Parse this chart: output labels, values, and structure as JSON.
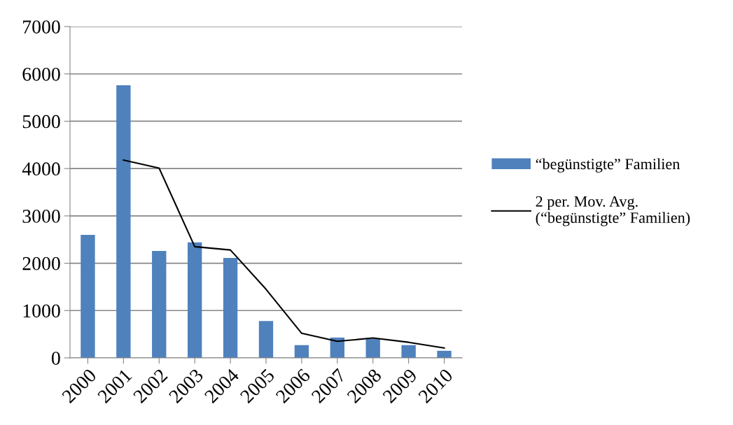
{
  "chart_data": {
    "type": "bar",
    "categories": [
      "2000",
      "2001",
      "2002",
      "2003",
      "2004",
      "2005",
      "2006",
      "2007",
      "2008",
      "2009",
      "2010"
    ],
    "series": [
      {
        "name": "“begünstigte” Familien",
        "color": "#4f81bd",
        "values": [
          2600,
          5760,
          2260,
          2440,
          2110,
          780,
          270,
          430,
          400,
          270,
          150
        ]
      },
      {
        "name": "2 per. Mov. Avg.\n(“begünstigte” Familien)",
        "type": "line",
        "color": "#000000",
        "values": [
          null,
          4180,
          4010,
          2350,
          2280,
          1450,
          520,
          350,
          420,
          330,
          210
        ]
      }
    ],
    "ylim": [
      0,
      7000
    ],
    "yticks": [
      0,
      1000,
      2000,
      3000,
      4000,
      5000,
      6000,
      7000
    ],
    "grid": "y",
    "legend": "right",
    "marker": "none",
    "line_style": "solid"
  }
}
